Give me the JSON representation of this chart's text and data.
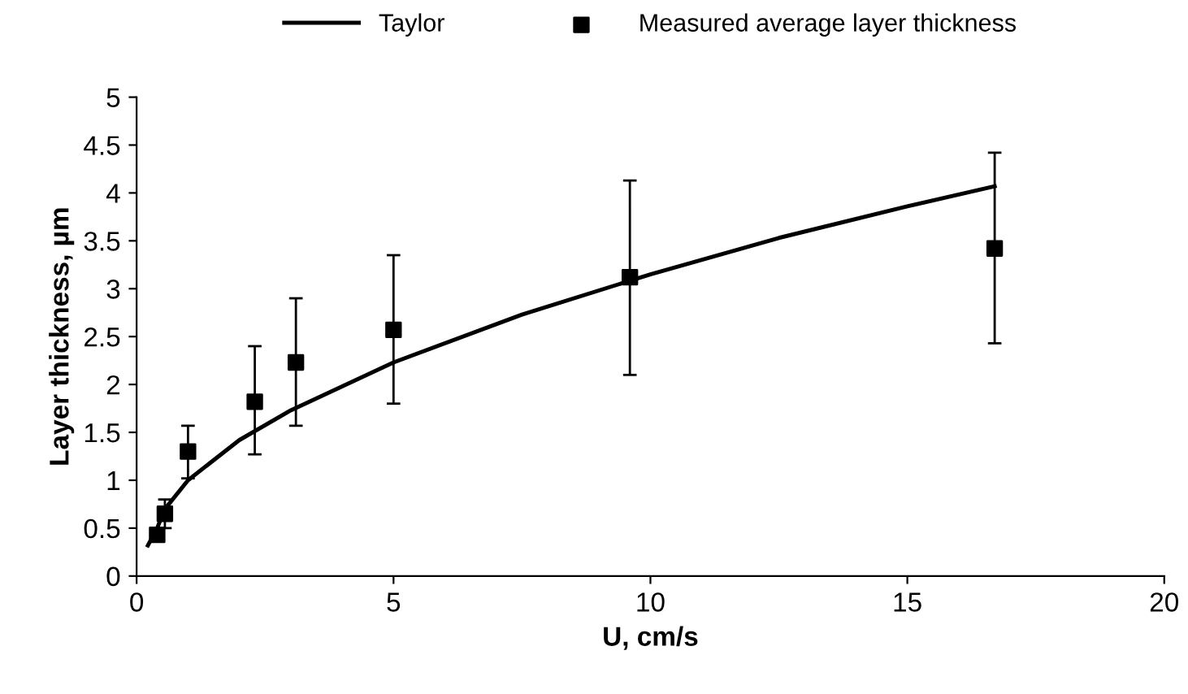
{
  "chart_data": {
    "type": "scatter",
    "xlabel": "U, cm/s",
    "ylabel": "Layer thickness, µm",
    "xlim": [
      0,
      20
    ],
    "xticks": [
      0,
      5,
      10,
      15,
      20
    ],
    "ylim": [
      0,
      5
    ],
    "yticks": [
      0,
      0.5,
      1,
      1.5,
      2,
      2.5,
      3,
      3.5,
      4,
      4.5,
      5
    ],
    "grid": false,
    "legend": "top",
    "series": [
      {
        "name": "Taylor",
        "type": "line",
        "color": "#000000",
        "marker": "none",
        "line_style": "solid",
        "x": [
          0.22,
          0.4,
          0.55,
          1,
          2,
          3,
          5,
          7.5,
          10,
          12.5,
          15,
          16.7
        ],
        "values": [
          0.32,
          0.5,
          0.7,
          1.0,
          1.42,
          1.73,
          2.23,
          2.73,
          3.15,
          3.53,
          3.86,
          4.07
        ]
      },
      {
        "name": "Measured average layer thickness",
        "color": "#000000",
        "marker": "square",
        "x": [
          0.4,
          0.55,
          1.0,
          2.3,
          3.1,
          5.0,
          9.6,
          16.7
        ],
        "values": [
          0.43,
          0.65,
          1.3,
          1.82,
          2.23,
          2.57,
          3.12,
          3.42
        ],
        "errors": [
          [
            0.38,
            0.5
          ],
          [
            0.5,
            0.8
          ],
          [
            1.02,
            1.57
          ],
          [
            1.27,
            2.4
          ],
          [
            1.57,
            2.9
          ],
          [
            1.8,
            3.35
          ],
          [
            2.1,
            4.13
          ],
          [
            2.43,
            4.42
          ]
        ]
      }
    ]
  }
}
